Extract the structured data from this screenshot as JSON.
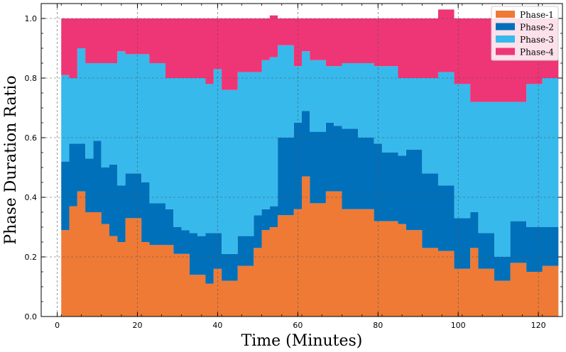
{
  "chart_data": {
    "type": "area",
    "step": true,
    "stacked": true,
    "xlabel": "Time (Minutes)",
    "ylabel": "Phase Duration Ratio",
    "xlim": [
      -4,
      126
    ],
    "ylim": [
      0,
      1.05
    ],
    "xticks": [
      0,
      20,
      40,
      60,
      80,
      100,
      120
    ],
    "yticks": [
      0.0,
      0.2,
      0.4,
      0.6,
      0.8,
      1.0
    ],
    "x_tick_labels": [
      "0",
      "20",
      "40",
      "60",
      "80",
      "100",
      "120"
    ],
    "y_tick_labels": [
      "0.0",
      "0.2",
      "0.4",
      "0.6",
      "0.8",
      "1.0"
    ],
    "grid": true,
    "legend_position": "top-right",
    "x": [
      1,
      3,
      5,
      7,
      9,
      11,
      13,
      15,
      17,
      19,
      21,
      23,
      25,
      27,
      29,
      31,
      33,
      35,
      37,
      39,
      41,
      43,
      45,
      47,
      49,
      51,
      53,
      55,
      57,
      59,
      61,
      63,
      65,
      67,
      69,
      71,
      73,
      75,
      77,
      79,
      81,
      83,
      85,
      87,
      89,
      91,
      93,
      95,
      97,
      99,
      101,
      103,
      105,
      107,
      109,
      111,
      113,
      115,
      117,
      119,
      121,
      123
    ],
    "series": [
      {
        "name": "Phase-1",
        "color": "#EE7A36",
        "values": [
          0.29,
          0.37,
          0.42,
          0.35,
          0.35,
          0.31,
          0.27,
          0.25,
          0.33,
          0.33,
          0.25,
          0.24,
          0.24,
          0.24,
          0.21,
          0.21,
          0.14,
          0.14,
          0.11,
          0.16,
          0.12,
          0.12,
          0.17,
          0.17,
          0.23,
          0.29,
          0.3,
          0.34,
          0.34,
          0.36,
          0.47,
          0.38,
          0.38,
          0.42,
          0.42,
          0.36,
          0.36,
          0.36,
          0.36,
          0.32,
          0.32,
          0.32,
          0.31,
          0.29,
          0.29,
          0.23,
          0.23,
          0.22,
          0.22,
          0.16,
          0.16,
          0.23,
          0.16,
          0.16,
          0.12,
          0.12,
          0.18,
          0.18,
          0.15,
          0.15,
          0.17,
          0.17
        ]
      },
      {
        "name": "Phase-2",
        "color": "#0070BA",
        "values": [
          0.23,
          0.21,
          0.16,
          0.18,
          0.24,
          0.19,
          0.24,
          0.19,
          0.15,
          0.15,
          0.2,
          0.14,
          0.14,
          0.12,
          0.09,
          0.08,
          0.14,
          0.13,
          0.17,
          0.12,
          0.09,
          0.09,
          0.1,
          0.1,
          0.11,
          0.07,
          0.07,
          0.26,
          0.26,
          0.29,
          0.22,
          0.24,
          0.24,
          0.23,
          0.22,
          0.27,
          0.27,
          0.24,
          0.24,
          0.26,
          0.23,
          0.23,
          0.23,
          0.27,
          0.27,
          0.25,
          0.25,
          0.22,
          0.22,
          0.17,
          0.17,
          0.12,
          0.12,
          0.12,
          0.08,
          0.08,
          0.14,
          0.14,
          0.15,
          0.15,
          0.13,
          0.13
        ]
      },
      {
        "name": "Phase-3",
        "color": "#37B9EC",
        "values": [
          0.29,
          0.22,
          0.32,
          0.32,
          0.26,
          0.35,
          0.34,
          0.45,
          0.4,
          0.4,
          0.43,
          0.47,
          0.47,
          0.44,
          0.5,
          0.51,
          0.52,
          0.53,
          0.5,
          0.55,
          0.55,
          0.55,
          0.55,
          0.55,
          0.48,
          0.5,
          0.5,
          0.31,
          0.31,
          0.19,
          0.2,
          0.24,
          0.24,
          0.19,
          0.2,
          0.22,
          0.22,
          0.25,
          0.25,
          0.26,
          0.29,
          0.29,
          0.26,
          0.24,
          0.24,
          0.32,
          0.32,
          0.38,
          0.38,
          0.45,
          0.45,
          0.37,
          0.44,
          0.44,
          0.52,
          0.52,
          0.4,
          0.4,
          0.48,
          0.48,
          0.5,
          0.5
        ]
      },
      {
        "name": "Phase-4",
        "color": "#EE3576",
        "values": [
          0.19,
          0.2,
          0.1,
          0.15,
          0.15,
          0.15,
          0.15,
          0.11,
          0.12,
          0.12,
          0.12,
          0.15,
          0.15,
          0.2,
          0.2,
          0.2,
          0.2,
          0.2,
          0.22,
          0.17,
          0.24,
          0.24,
          0.18,
          0.18,
          0.18,
          0.14,
          0.14,
          0.09,
          0.09,
          0.16,
          0.11,
          0.14,
          0.14,
          0.16,
          0.16,
          0.15,
          0.15,
          0.15,
          0.15,
          0.16,
          0.16,
          0.16,
          0.2,
          0.2,
          0.2,
          0.2,
          0.2,
          0.21,
          0.21,
          0.22,
          0.22,
          0.28,
          0.28,
          0.28,
          0.28,
          0.28,
          0.28,
          0.28,
          0.22,
          0.22,
          0.2,
          0.2
        ]
      }
    ]
  }
}
